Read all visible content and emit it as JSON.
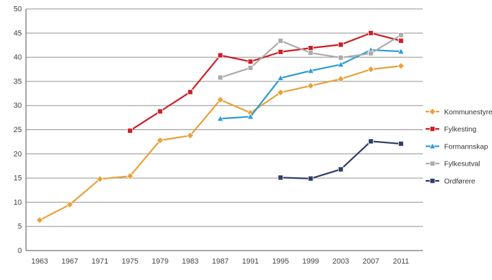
{
  "chart_data": {
    "type": "line",
    "title": "",
    "xlabel": "",
    "ylabel": "",
    "x": [
      1963,
      1967,
      1971,
      1975,
      1979,
      1983,
      1987,
      1991,
      1995,
      1999,
      2003,
      2007,
      2011
    ],
    "series": [
      {
        "name": "Kommunestyre",
        "color": "#E8A13C",
        "marker": "diamond",
        "values": [
          6.3,
          9.5,
          14.8,
          15.4,
          22.8,
          23.8,
          31.2,
          28.5,
          32.7,
          34.1,
          35.5,
          37.5,
          38.2
        ]
      },
      {
        "name": "Fylkesting",
        "color": "#CB2027",
        "marker": "square",
        "values": [
          null,
          null,
          null,
          24.8,
          28.8,
          32.8,
          40.4,
          39.1,
          41.1,
          41.9,
          42.6,
          45.0,
          43.4
        ]
      },
      {
        "name": "Formannskap",
        "color": "#2E9BD5",
        "marker": "triangle",
        "values": [
          null,
          null,
          null,
          null,
          null,
          null,
          27.3,
          27.7,
          35.7,
          37.2,
          38.5,
          41.5,
          41.2
        ]
      },
      {
        "name": "Fylkesutval",
        "color": "#ACACAC",
        "marker": "square",
        "values": [
          null,
          null,
          null,
          null,
          null,
          null,
          35.8,
          37.8,
          43.4,
          40.9,
          39.9,
          40.8,
          44.6
        ]
      },
      {
        "name": "Ordførere",
        "color": "#2F3E64",
        "marker": "square",
        "values": [
          null,
          null,
          null,
          null,
          null,
          null,
          null,
          null,
          15.1,
          14.9,
          16.8,
          22.6,
          22.1
        ]
      }
    ],
    "ylim": [
      0,
      50
    ],
    "ytick_step": 5,
    "yticks": [
      0,
      5,
      10,
      15,
      20,
      25,
      30,
      35,
      40,
      45,
      50
    ],
    "grid": true,
    "legend_position": "right",
    "colors": {
      "grid": "#8F8F8F",
      "axis": "#4A4A4A",
      "text": "#404040",
      "background": "#FFFFFF"
    }
  }
}
